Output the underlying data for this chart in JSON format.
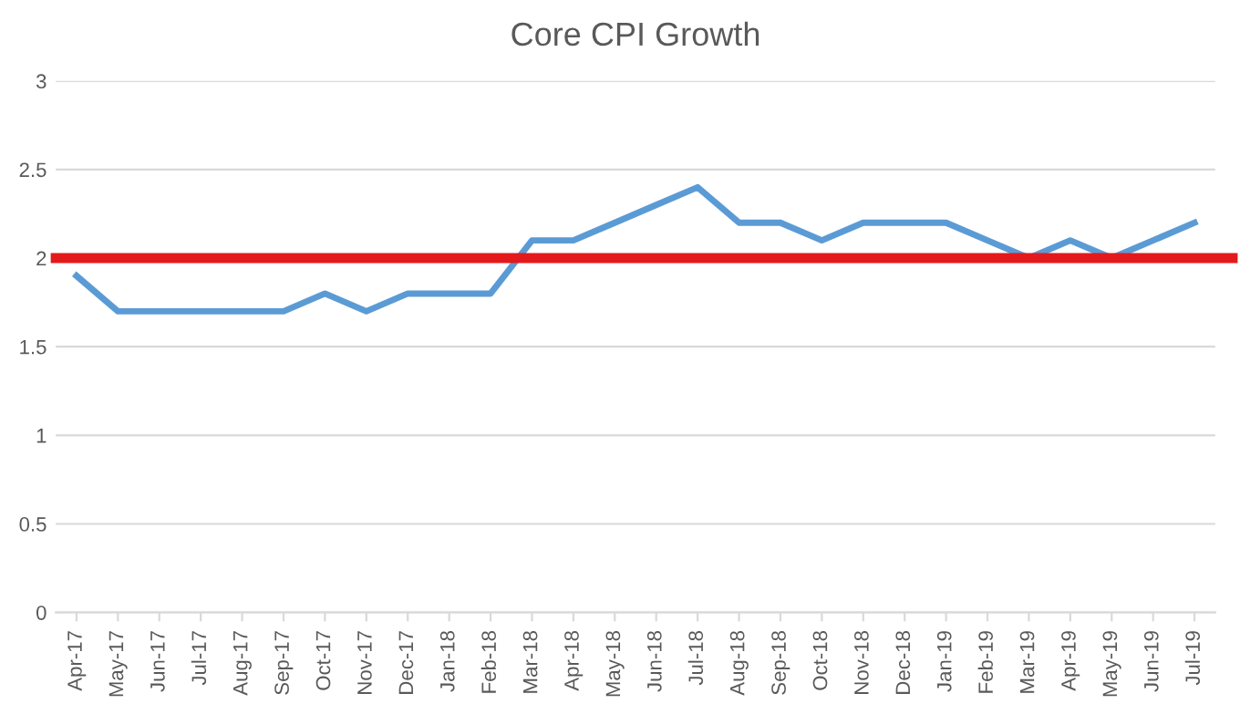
{
  "chart_data": {
    "type": "line",
    "title": "Core CPI Growth",
    "categories": [
      "Apr-17",
      "May-17",
      "Jun-17",
      "Jul-17",
      "Aug-17",
      "Sep-17",
      "Oct-17",
      "Nov-17",
      "Dec-17",
      "Jan-18",
      "Feb-18",
      "Mar-18",
      "Apr-18",
      "May-18",
      "Jun-18",
      "Jul-18",
      "Aug-18",
      "Sep-18",
      "Oct-18",
      "Nov-18",
      "Dec-18",
      "Jan-19",
      "Feb-19",
      "Mar-19",
      "Apr-19",
      "May-19",
      "Jun-19",
      "Jul-19"
    ],
    "series": [
      {
        "color": "#5b9bd5",
        "values": [
          1.9,
          1.7,
          1.7,
          1.7,
          1.7,
          1.7,
          1.8,
          1.7,
          1.8,
          1.8,
          1.8,
          2.1,
          2.1,
          2.2,
          2.3,
          2.4,
          2.2,
          2.2,
          2.1,
          2.2,
          2.2,
          2.2,
          2.1,
          2.0,
          2.1,
          2.0,
          2.1,
          2.2
        ]
      }
    ],
    "ylim": [
      0,
      3
    ],
    "yticks": [
      0,
      0.5,
      1,
      1.5,
      2,
      2.5,
      3
    ],
    "grid": "y",
    "legend": false,
    "marker": "none",
    "line_style": "solid",
    "ref_lines": [
      {
        "axis": "y",
        "value": 2,
        "label": null,
        "color": "#e3191c",
        "line_style": "solid"
      }
    ]
  }
}
